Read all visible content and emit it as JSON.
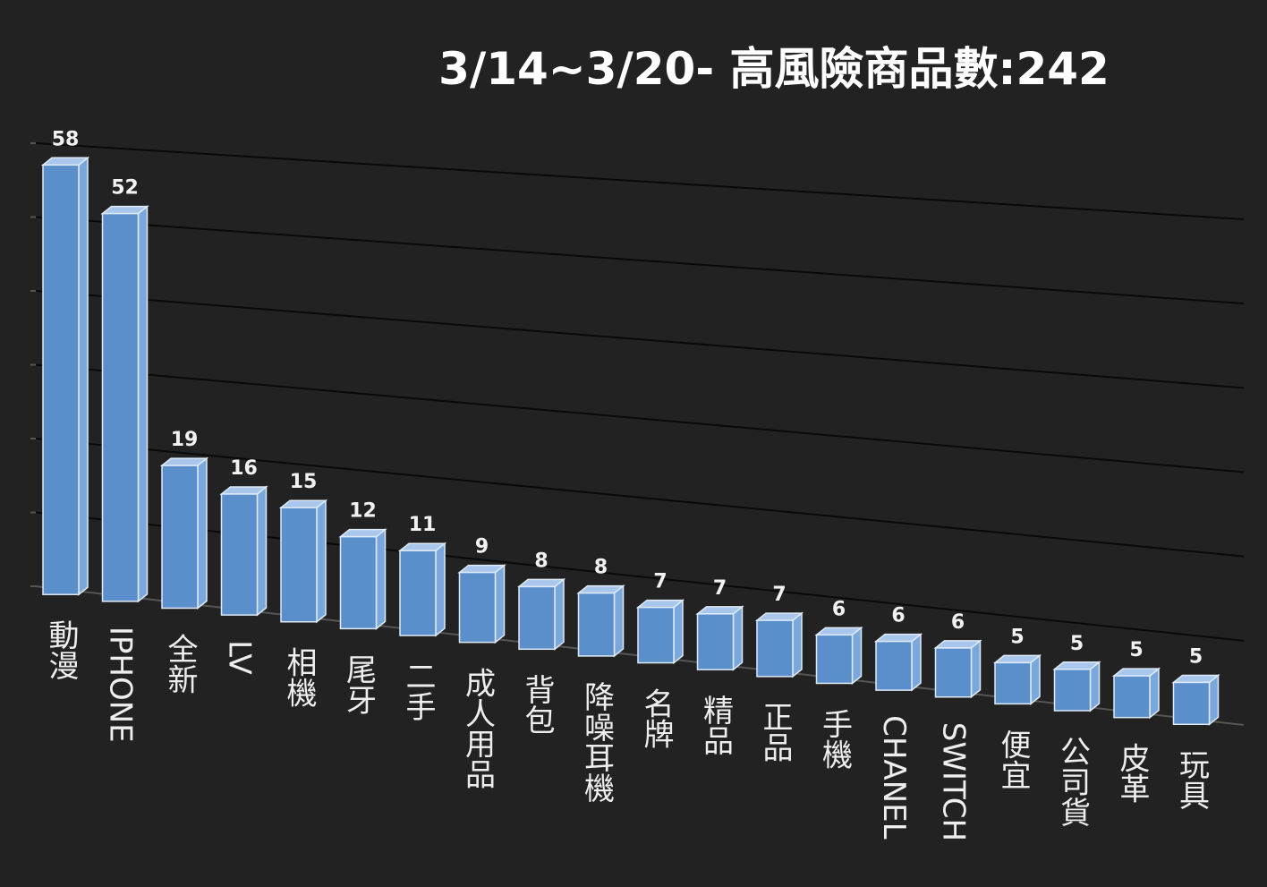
{
  "chart_data": {
    "type": "bar3d",
    "title": "3/14~3/20- 高風險商品數:242",
    "categories": [
      "動漫",
      "IPHONE",
      "全新",
      "LV",
      "相機",
      "尾牙",
      "二手",
      "成人用品",
      "背包",
      "降噪耳機",
      "名牌",
      "精品",
      "正品",
      "手機",
      "CHANEL",
      "SWITCH",
      "便宜",
      "公司貨",
      "皮革",
      "玩具"
    ],
    "values": [
      58,
      52,
      19,
      16,
      15,
      12,
      11,
      9,
      8,
      8,
      7,
      7,
      7,
      6,
      6,
      6,
      5,
      5,
      5,
      5
    ],
    "color": "#5b8fcc",
    "ylim": [
      0,
      60
    ],
    "yticks": [
      0,
      10,
      20,
      30,
      40,
      50,
      60
    ],
    "grid": true
  }
}
